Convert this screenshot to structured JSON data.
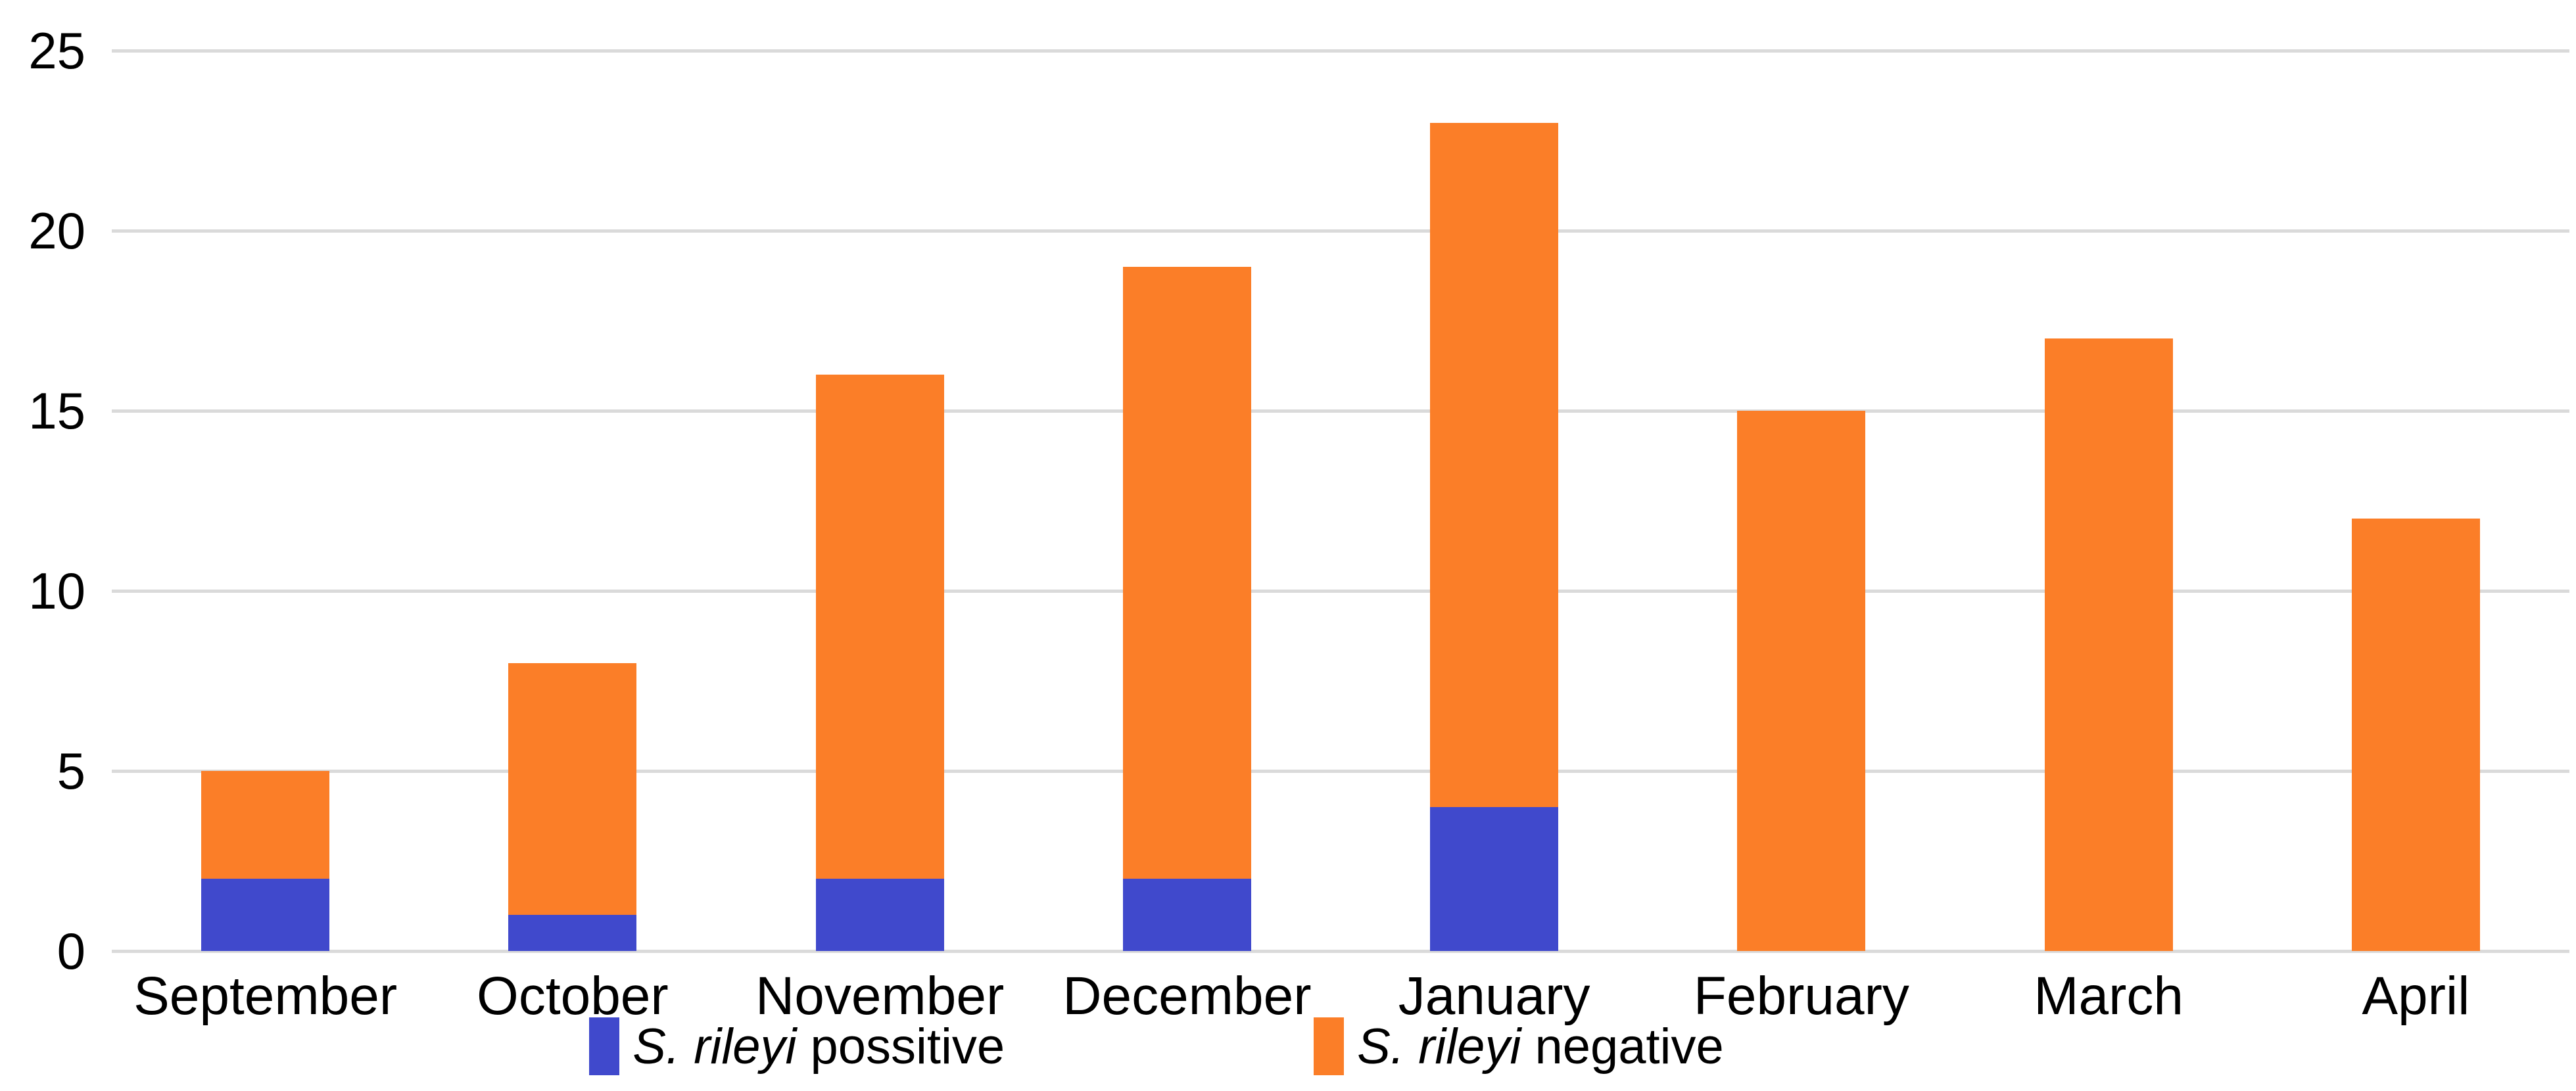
{
  "chart_data": {
    "type": "bar",
    "stacked": true,
    "title": "",
    "xlabel": "",
    "ylabel": "",
    "categories": [
      "September",
      "October",
      "November",
      "December",
      "January",
      "February",
      "March",
      "April"
    ],
    "series": [
      {
        "key": "possitive",
        "name": "S. rileyi possitive",
        "legend_italic": "S. rileyi",
        "legend_rest": " possitive",
        "color": "#4049CC",
        "values": [
          2,
          1,
          2,
          2,
          4,
          0,
          0,
          0
        ]
      },
      {
        "key": "negative",
        "name": "S. rileyi negative",
        "legend_italic": "S. rileyi",
        "legend_rest": " negative",
        "color": "#FB7E28",
        "values": [
          3,
          7,
          14,
          17,
          19,
          15,
          17,
          12
        ]
      }
    ],
    "totals": [
      5,
      8,
      16,
      19,
      23,
      15,
      17,
      12
    ],
    "ylim": [
      0,
      25
    ],
    "yticks": [
      0,
      5,
      10,
      15,
      20,
      25
    ],
    "ytick_labels": [
      "0",
      "5",
      "10",
      "15",
      "20",
      "25"
    ],
    "grid": "horizontal",
    "gridline_color": "#DADADA",
    "background": "#FFFFFF",
    "text_color": "#000000",
    "legend_position": "bottom"
  }
}
